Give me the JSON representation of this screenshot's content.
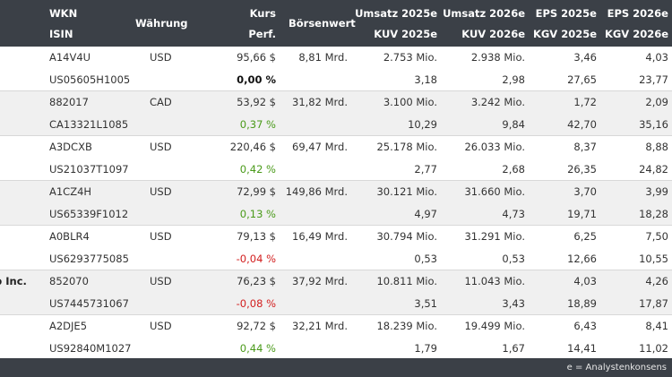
{
  "header": {
    "wkn": "WKN",
    "isin": "ISIN",
    "waehrung": "Währung",
    "kurs": "Kurs",
    "perf": "Perf.",
    "boersenwert": "Börsenwert",
    "umsatz2025": "Umsatz 2025e",
    "kuv2025": "KUV 2025e",
    "umsatz2026": "Umsatz 2026e",
    "kuv2026": "KUV 2026e",
    "eps2025": "EPS 2025e",
    "kgv2025": "KGV 2025e",
    "eps2026": "EPS 2026e",
    "kgv2026": "KGV 2026e"
  },
  "rows": [
    {
      "name": "",
      "wkn": "A14V4U",
      "isin": "US05605H1005",
      "cur": "USD",
      "kurs": "95,66 $",
      "perf": "0,00 %",
      "perf_sign": "zero",
      "bw": "8,81 Mrd.",
      "u25": "2.753 Mio.",
      "kuv25": "3,18",
      "u26": "2.938 Mio.",
      "kuv26": "2,98",
      "eps25": "3,46",
      "kgv25": "27,65",
      "eps26": "4,03",
      "kgv26": "23,77"
    },
    {
      "name": "",
      "wkn": "882017",
      "isin": "CA13321L1085",
      "cur": "CAD",
      "kurs": "53,92 $",
      "perf": "0,37 %",
      "perf_sign": "pos",
      "bw": "31,82 Mrd.",
      "u25": "3.100 Mio.",
      "kuv25": "10,29",
      "u26": "3.242 Mio.",
      "kuv26": "9,84",
      "eps25": "1,72",
      "kgv25": "42,70",
      "eps26": "2,09",
      "kgv26": "35,16"
    },
    {
      "name": "",
      "wkn": "A3DCXB",
      "isin": "US21037T1097",
      "cur": "USD",
      "kurs": "220,46 $",
      "perf": "0,42 %",
      "perf_sign": "pos",
      "bw": "69,47 Mrd.",
      "u25": "25.178 Mio.",
      "kuv25": "2,77",
      "u26": "26.033 Mio.",
      "kuv26": "2,68",
      "eps25": "8,37",
      "kgv25": "26,35",
      "eps26": "8,88",
      "kgv26": "24,82"
    },
    {
      "name": "",
      "wkn": "A1CZ4H",
      "isin": "US65339F1012",
      "cur": "USD",
      "kurs": "72,99 $",
      "perf": "0,13 %",
      "perf_sign": "pos",
      "bw": "149,86 Mrd.",
      "u25": "30.121 Mio.",
      "kuv25": "4,97",
      "u26": "31.660 Mio.",
      "kuv26": "4,73",
      "eps25": "3,70",
      "kgv25": "19,71",
      "eps26": "3,99",
      "kgv26": "18,28"
    },
    {
      "name": "",
      "wkn": "A0BLR4",
      "isin": "US6293775085",
      "cur": "USD",
      "kurs": "79,13 $",
      "perf": "-0,04 %",
      "perf_sign": "neg",
      "bw": "16,49 Mrd.",
      "u25": "30.794 Mio.",
      "kuv25": "0,53",
      "u26": "31.291 Mio.",
      "kuv26": "0,53",
      "eps25": "6,25",
      "kgv25": "12,66",
      "eps26": "7,50",
      "kgv26": "10,55"
    },
    {
      "name": "p Inc.",
      "wkn": "852070",
      "isin": "US7445731067",
      "cur": "USD",
      "kurs": "76,23 $",
      "perf": "-0,08 %",
      "perf_sign": "neg",
      "bw": "37,92 Mrd.",
      "u25": "10.811 Mio.",
      "kuv25": "3,51",
      "u26": "11.043 Mio.",
      "kuv26": "3,43",
      "eps25": "4,03",
      "kgv25": "18,89",
      "eps26": "4,26",
      "kgv26": "17,87"
    },
    {
      "name": "",
      "wkn": "A2DJE5",
      "isin": "US92840M1027",
      "cur": "USD",
      "kurs": "92,72 $",
      "perf": "0,44 %",
      "perf_sign": "pos",
      "bw": "32,21 Mrd.",
      "u25": "18.239 Mio.",
      "kuv25": "1,79",
      "u26": "19.499 Mio.",
      "kuv26": "1,67",
      "eps25": "6,43",
      "kgv25": "14,41",
      "eps26": "8,41",
      "kgv26": "11,02"
    }
  ],
  "footer": {
    "note": "e = Analystenkonsens"
  },
  "colors": {
    "header_bg": "#3b4047",
    "positive": "#4a9a1a",
    "negative": "#d21e1e",
    "shade": "#f0f0f0"
  }
}
